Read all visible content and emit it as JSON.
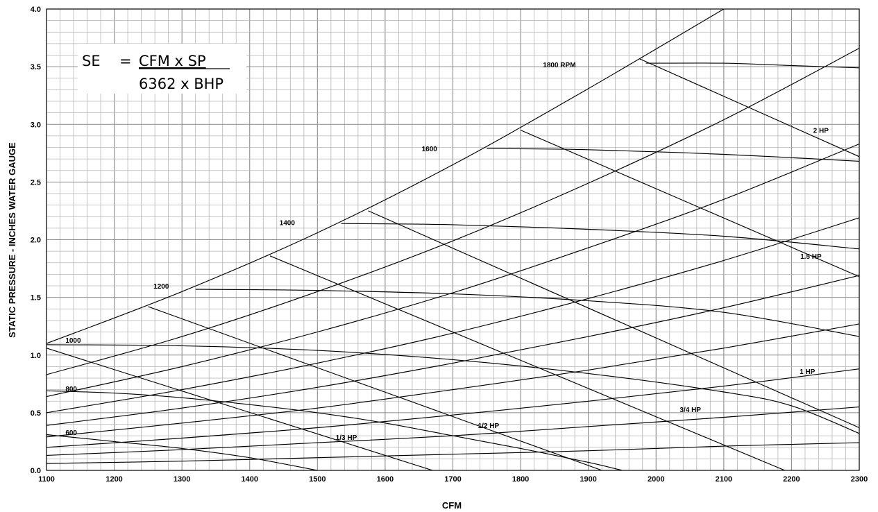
{
  "chart_data": {
    "type": "line",
    "title": "",
    "xlabel": "CFM",
    "ylabel": "STATIC PRESSURE - INCHES WATER GAUGE",
    "xlim": [
      1100,
      2300
    ],
    "ylim": [
      0,
      4.0
    ],
    "x_ticks": [
      "1100",
      "1200",
      "1300",
      "1400",
      "1500",
      "1600",
      "1700",
      "1800",
      "1900",
      "2000",
      "2100",
      "2200",
      "2300"
    ],
    "y_ticks": [
      "0.0",
      "0.5",
      "1.0",
      "1.5",
      "2.0",
      "2.5",
      "3.0",
      "3.5",
      "4.0"
    ],
    "grid": true,
    "formula": {
      "lhs": "SE",
      "eq": "=",
      "numerator": "CFM x SP",
      "denominator": "6362 x BHP"
    },
    "rpm_curves": [
      {
        "name": "600",
        "points": [
          [
            1100,
            0.31
          ],
          [
            1200,
            0.25
          ],
          [
            1300,
            0.19
          ],
          [
            1400,
            0.11
          ],
          [
            1500,
            0.0
          ]
        ]
      },
      {
        "name": "800",
        "points": [
          [
            1100,
            0.69
          ],
          [
            1200,
            0.67
          ],
          [
            1300,
            0.63
          ],
          [
            1400,
            0.57
          ],
          [
            1500,
            0.5
          ],
          [
            1600,
            0.41
          ],
          [
            1700,
            0.3
          ],
          [
            1800,
            0.19
          ],
          [
            1900,
            0.07
          ],
          [
            1950,
            0.0
          ]
        ]
      },
      {
        "name": "1000",
        "points": [
          [
            1100,
            1.09
          ],
          [
            1300,
            1.08
          ],
          [
            1500,
            1.04
          ],
          [
            1700,
            0.96
          ],
          [
            1900,
            0.84
          ],
          [
            2100,
            0.68
          ],
          [
            2200,
            0.56
          ],
          [
            2300,
            0.32
          ]
        ]
      },
      {
        "name": "1200",
        "points": [
          [
            1320,
            1.57
          ],
          [
            1500,
            1.56
          ],
          [
            1700,
            1.53
          ],
          [
            1900,
            1.47
          ],
          [
            2100,
            1.37
          ],
          [
            2300,
            1.16
          ]
        ]
      },
      {
        "name": "1400",
        "points": [
          [
            1535,
            2.14
          ],
          [
            1700,
            2.13
          ],
          [
            1900,
            2.09
          ],
          [
            2100,
            2.03
          ],
          [
            2300,
            1.92
          ]
        ]
      },
      {
        "name": "1600",
        "points": [
          [
            1750,
            2.79
          ],
          [
            1900,
            2.78
          ],
          [
            2100,
            2.74
          ],
          [
            2300,
            2.68
          ]
        ]
      },
      {
        "name": "1800 RPM",
        "points": [
          [
            1985,
            3.53
          ],
          [
            2100,
            3.53
          ],
          [
            2200,
            3.51
          ],
          [
            2300,
            3.49
          ]
        ]
      }
    ],
    "hp_lines": [
      {
        "name": "1/3 HP",
        "points": [
          [
            1100,
            1.06
          ],
          [
            1670,
            0.0
          ]
        ]
      },
      {
        "name": "1/2 HP",
        "points": [
          [
            1250,
            1.42
          ],
          [
            1920,
            0.0
          ]
        ]
      },
      {
        "name": "3/4 HP",
        "points": [
          [
            1430,
            1.86
          ],
          [
            2190,
            0.0
          ]
        ]
      },
      {
        "name": "1 HP",
        "points": [
          [
            1575,
            2.25
          ],
          [
            2300,
            0.37
          ]
        ]
      },
      {
        "name": "1.5 HP",
        "points": [
          [
            1800,
            2.95
          ],
          [
            2300,
            1.68
          ]
        ]
      },
      {
        "name": "2 HP",
        "points": [
          [
            1975,
            3.57
          ],
          [
            2300,
            2.72
          ]
        ]
      }
    ],
    "system_curves": [
      {
        "points": [
          [
            1100,
            1.1
          ],
          [
            1300,
            1.55
          ],
          [
            1500,
            2.06
          ],
          [
            1700,
            2.65
          ],
          [
            1900,
            3.31
          ],
          [
            2100,
            4.0
          ]
        ]
      },
      {
        "points": [
          [
            1100,
            0.83
          ],
          [
            1300,
            1.16
          ],
          [
            1500,
            1.55
          ],
          [
            1700,
            1.99
          ],
          [
            1900,
            2.49
          ],
          [
            2100,
            3.04
          ],
          [
            2300,
            3.66
          ]
        ]
      },
      {
        "points": [
          [
            1100,
            0.64
          ],
          [
            1300,
            0.9
          ],
          [
            1500,
            1.2
          ],
          [
            1700,
            1.54
          ],
          [
            1900,
            1.93
          ],
          [
            2100,
            2.35
          ],
          [
            2300,
            2.83
          ]
        ]
      },
      {
        "points": [
          [
            1100,
            0.5
          ],
          [
            1300,
            0.7
          ],
          [
            1500,
            0.93
          ],
          [
            1700,
            1.19
          ],
          [
            1900,
            1.49
          ],
          [
            2100,
            1.82
          ],
          [
            2300,
            2.19
          ]
        ]
      },
      {
        "points": [
          [
            1100,
            0.39
          ],
          [
            1300,
            0.54
          ],
          [
            1500,
            0.72
          ],
          [
            1700,
            0.93
          ],
          [
            1900,
            1.16
          ],
          [
            2100,
            1.41
          ],
          [
            2300,
            1.69
          ]
        ]
      },
      {
        "points": [
          [
            1100,
            0.29
          ],
          [
            1300,
            0.41
          ],
          [
            1500,
            0.54
          ],
          [
            1700,
            0.7
          ],
          [
            1900,
            0.87
          ],
          [
            2100,
            1.06
          ],
          [
            2300,
            1.27
          ]
        ]
      },
      {
        "points": [
          [
            1100,
            0.2
          ],
          [
            1300,
            0.28
          ],
          [
            1500,
            0.37
          ],
          [
            1700,
            0.48
          ],
          [
            1900,
            0.6
          ],
          [
            2100,
            0.73
          ],
          [
            2300,
            0.88
          ]
        ]
      },
      {
        "points": [
          [
            1100,
            0.13
          ],
          [
            1300,
            0.18
          ],
          [
            1500,
            0.24
          ],
          [
            1700,
            0.3
          ],
          [
            1900,
            0.38
          ],
          [
            2100,
            0.46
          ],
          [
            2300,
            0.55
          ]
        ]
      },
      {
        "points": [
          [
            1100,
            0.06
          ],
          [
            1300,
            0.08
          ],
          [
            1500,
            0.11
          ],
          [
            1700,
            0.14
          ],
          [
            1900,
            0.17
          ],
          [
            2100,
            0.21
          ],
          [
            2300,
            0.24
          ]
        ]
      }
    ],
    "curve_labels": [
      {
        "text": "600",
        "x": 1128,
        "y": 0.33
      },
      {
        "text": "800",
        "x": 1128,
        "y": 0.71
      },
      {
        "text": "1000",
        "x": 1128,
        "y": 1.13
      },
      {
        "text": "1200",
        "x": 1258,
        "y": 1.6
      },
      {
        "text": "1400",
        "x": 1444,
        "y": 2.15
      },
      {
        "text": "1600",
        "x": 1654,
        "y": 2.79
      },
      {
        "text": "1800 RPM",
        "x": 1833,
        "y": 3.52
      },
      {
        "text": "2 HP",
        "x": 2232,
        "y": 2.95
      },
      {
        "text": "1.5 HP",
        "x": 2213,
        "y": 1.86
      },
      {
        "text": "1 HP",
        "x": 2212,
        "y": 0.86
      },
      {
        "text": "3/4 HP",
        "x": 2035,
        "y": 0.53
      },
      {
        "text": "1/2 HP",
        "x": 1737,
        "y": 0.39
      },
      {
        "text": "1/3 HP",
        "x": 1527,
        "y": 0.29
      }
    ]
  }
}
